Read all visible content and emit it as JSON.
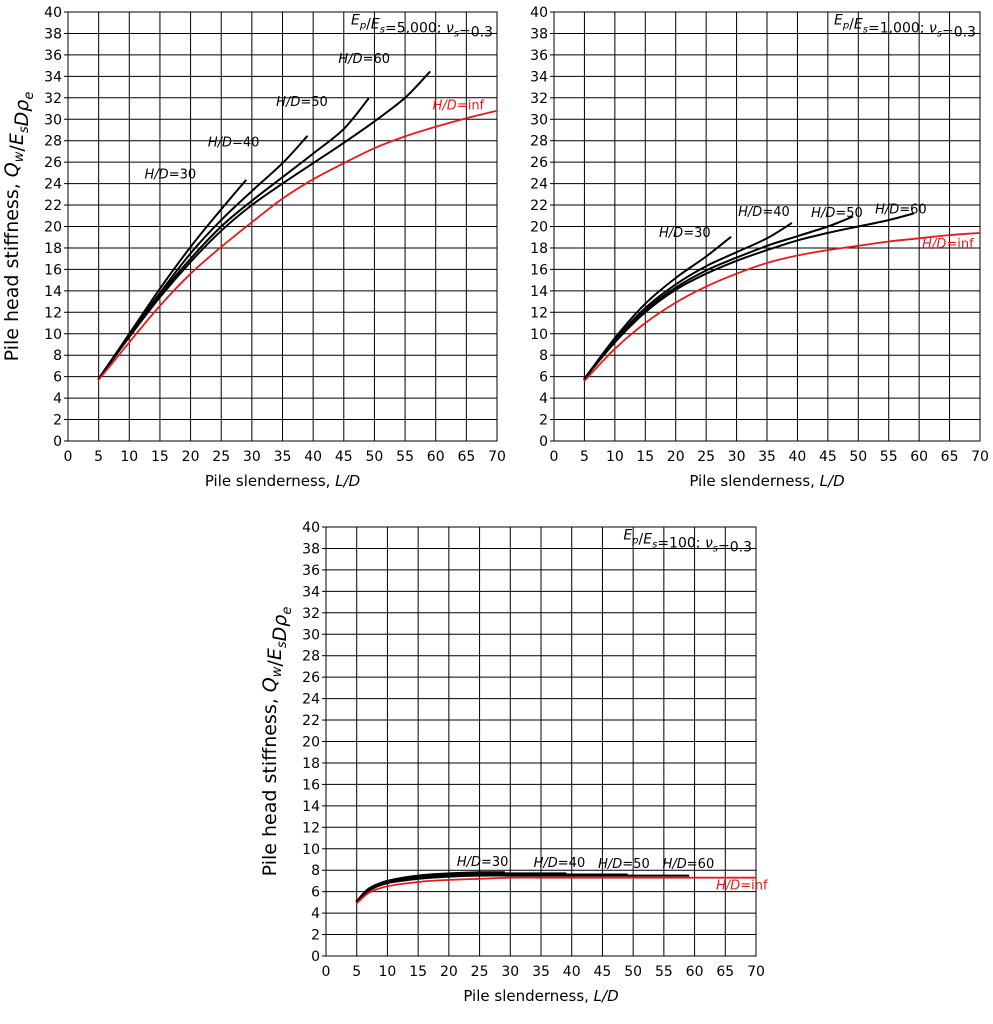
{
  "chart_data": [
    {
      "type": "line",
      "panel": "top-left",
      "condition": {
        "ratio_label": "E_p/E_s",
        "ratio_value": "=5,000; ",
        "poisson_label": "ν_s",
        "poisson_value": "=0.3"
      },
      "xlabel": {
        "text": "Pile slenderness, ",
        "var": "L/D"
      },
      "ylabel": "Pile head stiffness, Q_w/E_sDρ_e",
      "xlim": [
        0,
        70
      ],
      "ylim": [
        0,
        40
      ],
      "x_ticks": [
        "0",
        "5",
        "10",
        "15",
        "20",
        "25",
        "30",
        "35",
        "40",
        "45",
        "50",
        "55",
        "60",
        "65",
        "70"
      ],
      "y_ticks": [
        "0",
        "2",
        "4",
        "6",
        "8",
        "10",
        "12",
        "14",
        "16",
        "18",
        "20",
        "22",
        "24",
        "26",
        "28",
        "30",
        "32",
        "34",
        "36",
        "38",
        "40"
      ],
      "series": [
        {
          "name": "H/D=30",
          "label_var": "H/D",
          "label_value": "=30",
          "color": "#000000",
          "x": [
            5,
            10,
            15,
            20,
            25,
            29
          ],
          "y": [
            5.8,
            10.0,
            14.2,
            18.1,
            21.6,
            24.3
          ]
        },
        {
          "name": "H/D=40",
          "label_var": "H/D",
          "label_value": "=40",
          "color": "#000000",
          "x": [
            5,
            10,
            15,
            20,
            25,
            30,
            35,
            39
          ],
          "y": [
            5.8,
            9.9,
            13.8,
            17.5,
            20.6,
            23.3,
            25.9,
            28.4
          ]
        },
        {
          "name": "H/D=50",
          "label_var": "H/D",
          "label_value": "=50",
          "color": "#000000",
          "x": [
            5,
            10,
            15,
            20,
            25,
            30,
            35,
            40,
            45,
            49
          ],
          "y": [
            5.8,
            9.8,
            13.6,
            17.0,
            20.0,
            22.4,
            24.6,
            26.8,
            29.1,
            31.9
          ]
        },
        {
          "name": "H/D=60",
          "label_var": "H/D",
          "label_value": "=60",
          "color": "#000000",
          "x": [
            5,
            10,
            15,
            20,
            25,
            30,
            35,
            40,
            45,
            50,
            55,
            59
          ],
          "y": [
            5.8,
            9.7,
            13.4,
            16.7,
            19.6,
            22.0,
            24.0,
            25.9,
            27.8,
            29.8,
            32.0,
            34.4
          ]
        },
        {
          "name": "H/D=inf",
          "label_var": "H/D",
          "label_value": "=inf",
          "color": "#e8191a",
          "x": [
            5,
            10,
            15,
            20,
            25,
            30,
            35,
            40,
            45,
            50,
            55,
            60,
            65,
            70
          ],
          "y": [
            5.7,
            9.2,
            12.6,
            15.6,
            18.1,
            20.4,
            22.6,
            24.4,
            25.9,
            27.3,
            28.4,
            29.3,
            30.1,
            30.8
          ]
        }
      ]
    },
    {
      "type": "line",
      "panel": "top-right",
      "condition": {
        "ratio_label": "E_p/E_s",
        "ratio_value": "=1,000; ",
        "poisson_label": "ν_s",
        "poisson_value": "=0.3"
      },
      "xlabel": {
        "text": "Pile slenderness, ",
        "var": "L/D"
      },
      "ylabel": "",
      "xlim": [
        0,
        70
      ],
      "ylim": [
        0,
        40
      ],
      "x_ticks": [
        "0",
        "5",
        "10",
        "15",
        "20",
        "25",
        "30",
        "35",
        "40",
        "45",
        "50",
        "55",
        "60",
        "65",
        "70"
      ],
      "y_ticks": [
        "0",
        "2",
        "4",
        "6",
        "8",
        "10",
        "12",
        "14",
        "16",
        "18",
        "20",
        "22",
        "24",
        "26",
        "28",
        "30",
        "32",
        "34",
        "36",
        "38",
        "40"
      ],
      "series": [
        {
          "name": "H/D=30",
          "label_var": "H/D",
          "label_value": "=30",
          "color": "#000000",
          "x": [
            5,
            10,
            15,
            20,
            25,
            29
          ],
          "y": [
            5.8,
            9.6,
            12.8,
            15.2,
            17.2,
            19.0
          ]
        },
        {
          "name": "H/D=40",
          "label_var": "H/D",
          "label_value": "=40",
          "color": "#000000",
          "x": [
            5,
            10,
            15,
            20,
            25,
            30,
            35,
            39
          ],
          "y": [
            5.8,
            9.4,
            12.4,
            14.6,
            16.3,
            17.6,
            18.9,
            20.3
          ]
        },
        {
          "name": "H/D=50",
          "label_var": "H/D",
          "label_value": "=50",
          "color": "#000000",
          "x": [
            5,
            10,
            15,
            20,
            25,
            30,
            35,
            40,
            45,
            49
          ],
          "y": [
            5.8,
            9.3,
            12.2,
            14.3,
            15.9,
            17.1,
            18.2,
            19.1,
            20.0,
            20.9
          ]
        },
        {
          "name": "H/D=60",
          "label_var": "H/D",
          "label_value": "=60",
          "color": "#000000",
          "x": [
            5,
            10,
            15,
            20,
            25,
            30,
            35,
            40,
            45,
            50,
            55,
            59
          ],
          "y": [
            5.8,
            9.2,
            12.0,
            14.1,
            15.6,
            16.8,
            17.8,
            18.7,
            19.4,
            20.0,
            20.6,
            21.2
          ]
        },
        {
          "name": "H/D=inf",
          "label_var": "H/D",
          "label_value": "=inf",
          "color": "#e8191a",
          "x": [
            5,
            10,
            15,
            20,
            25,
            30,
            35,
            40,
            45,
            50,
            55,
            60,
            65,
            70
          ],
          "y": [
            5.6,
            8.6,
            11.0,
            12.9,
            14.4,
            15.6,
            16.6,
            17.3,
            17.8,
            18.2,
            18.6,
            18.9,
            19.2,
            19.4
          ]
        }
      ]
    },
    {
      "type": "line",
      "panel": "bottom",
      "condition": {
        "ratio_label": "E_p/E_s",
        "ratio_value": "=100; ",
        "poisson_label": "ν_s",
        "poisson_value": "=0.3"
      },
      "xlabel": {
        "text": "Pile slenderness, ",
        "var": "L/D"
      },
      "ylabel": "Pile head stiffness, Q_w/E_sDρ_e",
      "xlim": [
        0,
        70
      ],
      "ylim": [
        0,
        40
      ],
      "x_ticks": [
        "0",
        "5",
        "10",
        "15",
        "20",
        "25",
        "30",
        "35",
        "40",
        "45",
        "50",
        "55",
        "60",
        "65",
        "70"
      ],
      "y_ticks": [
        "0",
        "2",
        "4",
        "6",
        "8",
        "10",
        "12",
        "14",
        "16",
        "18",
        "20",
        "22",
        "24",
        "26",
        "28",
        "30",
        "32",
        "34",
        "36",
        "38",
        "40"
      ],
      "series": [
        {
          "name": "H/D=30",
          "label_var": "H/D",
          "label_value": "=30",
          "color": "#000000",
          "x": [
            5,
            7,
            10,
            15,
            20,
            25,
            29
          ],
          "y": [
            5.1,
            6.3,
            7.0,
            7.5,
            7.7,
            7.8,
            7.8
          ]
        },
        {
          "name": "H/D=40",
          "label_var": "H/D",
          "label_value": "=40",
          "color": "#000000",
          "x": [
            5,
            7,
            10,
            15,
            20,
            25,
            30,
            35,
            39
          ],
          "y": [
            5.1,
            6.2,
            6.9,
            7.4,
            7.6,
            7.7,
            7.7,
            7.7,
            7.7
          ]
        },
        {
          "name": "H/D=50",
          "label_var": "H/D",
          "label_value": "=50",
          "color": "#000000",
          "x": [
            5,
            7,
            10,
            15,
            20,
            25,
            30,
            35,
            40,
            45,
            49
          ],
          "y": [
            5.1,
            6.2,
            6.9,
            7.3,
            7.5,
            7.6,
            7.6,
            7.6,
            7.6,
            7.6,
            7.6
          ]
        },
        {
          "name": "H/D=60",
          "label_var": "H/D",
          "label_value": "=60",
          "color": "#000000",
          "x": [
            5,
            7,
            10,
            15,
            20,
            25,
            30,
            35,
            40,
            45,
            50,
            55,
            59
          ],
          "y": [
            5.1,
            6.1,
            6.8,
            7.2,
            7.4,
            7.5,
            7.5,
            7.5,
            7.5,
            7.5,
            7.5,
            7.5,
            7.5
          ]
        },
        {
          "name": "H/D=inf",
          "label_var": "H/D",
          "label_value": "=inf",
          "color": "#e8191a",
          "x": [
            5,
            7,
            10,
            15,
            20,
            25,
            30,
            35,
            40,
            45,
            50,
            55,
            60,
            65,
            70
          ],
          "y": [
            4.9,
            5.9,
            6.5,
            6.9,
            7.1,
            7.2,
            7.3,
            7.3,
            7.3,
            7.3,
            7.3,
            7.3,
            7.3,
            7.3,
            7.3
          ]
        }
      ]
    }
  ]
}
